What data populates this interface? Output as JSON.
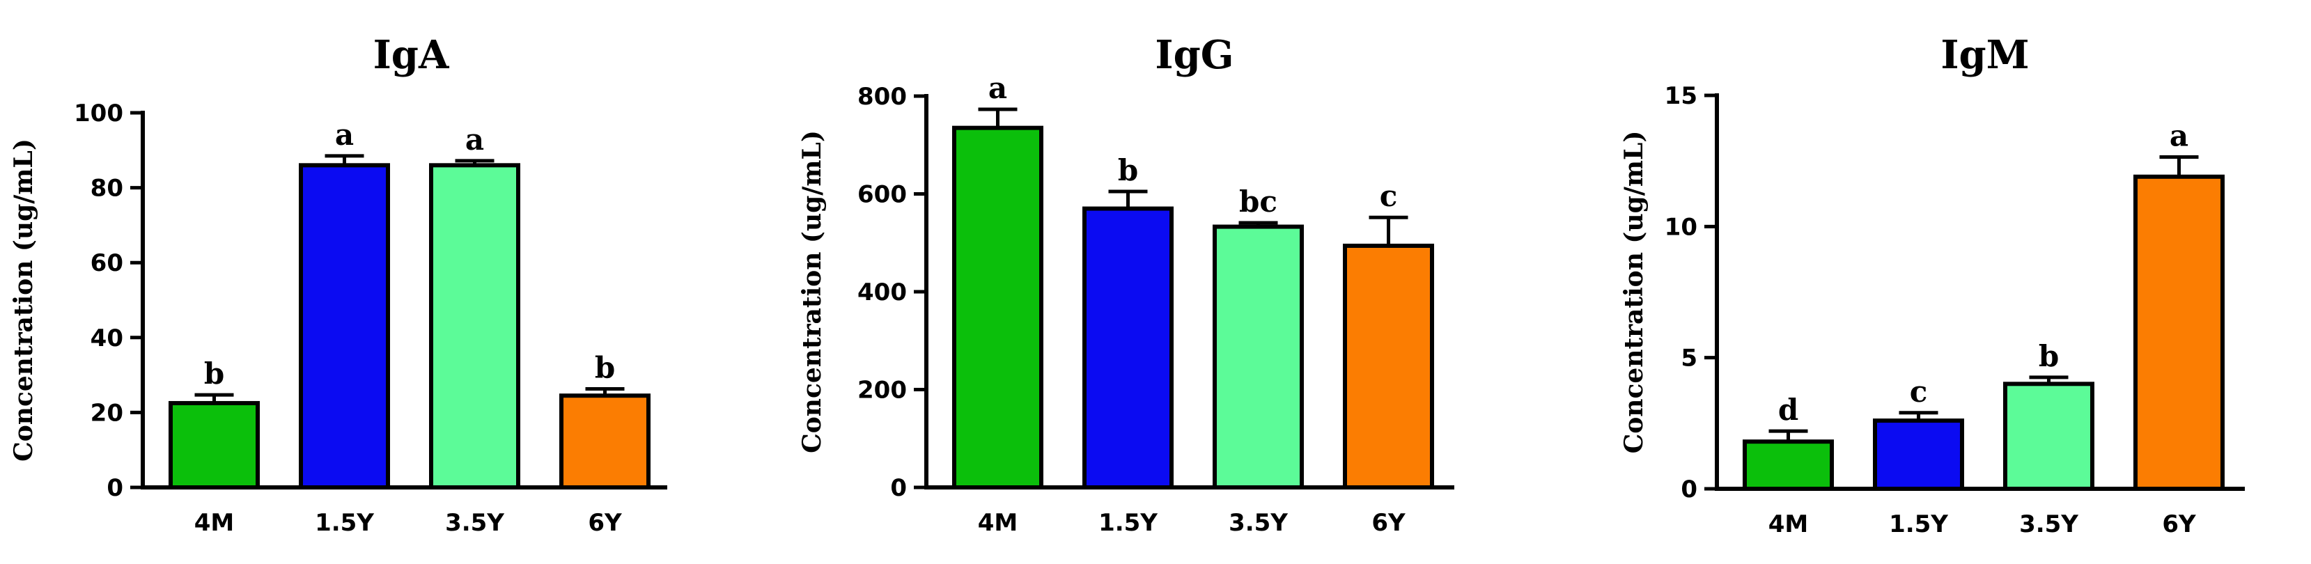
{
  "figure": {
    "panel_count": 3
  },
  "chart_data": [
    {
      "type": "bar",
      "title": "IgA",
      "xlabel": "",
      "ylabel": "Concentration (ug/mL)",
      "categories": [
        "4M",
        "1.5Y",
        "3.5Y",
        "6Y"
      ],
      "values": [
        22.5,
        86,
        86,
        24.5
      ],
      "errors": [
        2.2,
        2.5,
        1.2,
        1.8
      ],
      "significance": [
        "b",
        "a",
        "a",
        "b"
      ],
      "colors": [
        "#0bbf0b",
        "#0b0bf2",
        "#5cfb98",
        "#fb7d02"
      ],
      "ylim": [
        0,
        100
      ],
      "yticks": [
        0,
        20,
        40,
        60,
        80,
        100
      ],
      "grid": false
    },
    {
      "type": "bar",
      "title": "IgG",
      "xlabel": "",
      "ylabel": "Concentration (ug/mL)",
      "categories": [
        "4M",
        "1.5Y",
        "3.5Y",
        "6Y"
      ],
      "values": [
        735,
        570,
        533,
        494
      ],
      "errors": [
        38,
        35,
        8,
        58
      ],
      "significance": [
        "a",
        "b",
        "bc",
        "c"
      ],
      "colors": [
        "#0bbf0b",
        "#0b0bf2",
        "#5cfb98",
        "#fb7d02"
      ],
      "ylim": [
        0,
        800
      ],
      "yticks": [
        0,
        200,
        400,
        600,
        800
      ],
      "grid": false
    },
    {
      "type": "bar",
      "title": "IgM",
      "xlabel": "",
      "ylabel": "Concentration (ug/mL)",
      "categories": [
        "4M",
        "1.5Y",
        "3.5Y",
        "6Y"
      ],
      "values": [
        1.8,
        2.6,
        4.0,
        11.9
      ],
      "errors": [
        0.4,
        0.3,
        0.25,
        0.75
      ],
      "significance": [
        "d",
        "c",
        "b",
        "a"
      ],
      "colors": [
        "#0bbf0b",
        "#0b0bf2",
        "#5cfb98",
        "#fb7d02"
      ],
      "ylim": [
        0,
        15
      ],
      "yticks": [
        0,
        5,
        10,
        15
      ],
      "grid": false
    }
  ]
}
